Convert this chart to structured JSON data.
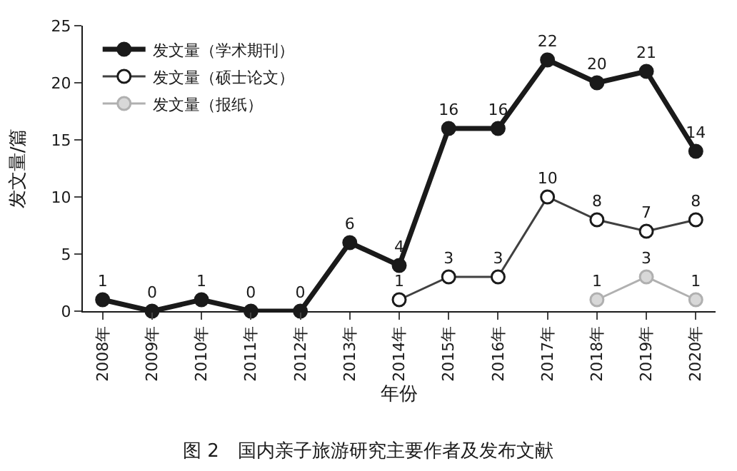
{
  "chart_data": {
    "type": "line",
    "categories": [
      "2008年",
      "2009年",
      "2010年",
      "2011年",
      "2012年",
      "2013年",
      "2014年",
      "2015年",
      "2016年",
      "2017年",
      "2018年",
      "2019年",
      "2020年"
    ],
    "series": [
      {
        "name": "发文量（学术期刊）",
        "color": "#1a1a1a",
        "values": [
          1,
          0,
          1,
          0,
          0,
          6,
          4,
          16,
          16,
          22,
          20,
          21,
          14
        ]
      },
      {
        "name": "发文量（硕士论文）",
        "color": "#404040",
        "values": [
          null,
          null,
          null,
          null,
          null,
          null,
          1,
          3,
          3,
          10,
          8,
          7,
          8
        ]
      },
      {
        "name": "发文量（报纸）",
        "color": "#b0b0b0",
        "values": [
          null,
          null,
          null,
          null,
          null,
          null,
          null,
          null,
          null,
          null,
          1,
          3,
          1
        ]
      }
    ],
    "xlabel": "年份",
    "ylabel": "发文量/篇",
    "ylim": [
      0,
      25
    ],
    "yticks": [
      0,
      5,
      10,
      15,
      20,
      25
    ],
    "legend": "top left",
    "marker": "circle",
    "line_style": "solid",
    "data_labels": true,
    "annotations": [
      "图 2　国内亲子旅游研究主要作者及发布文献"
    ]
  }
}
